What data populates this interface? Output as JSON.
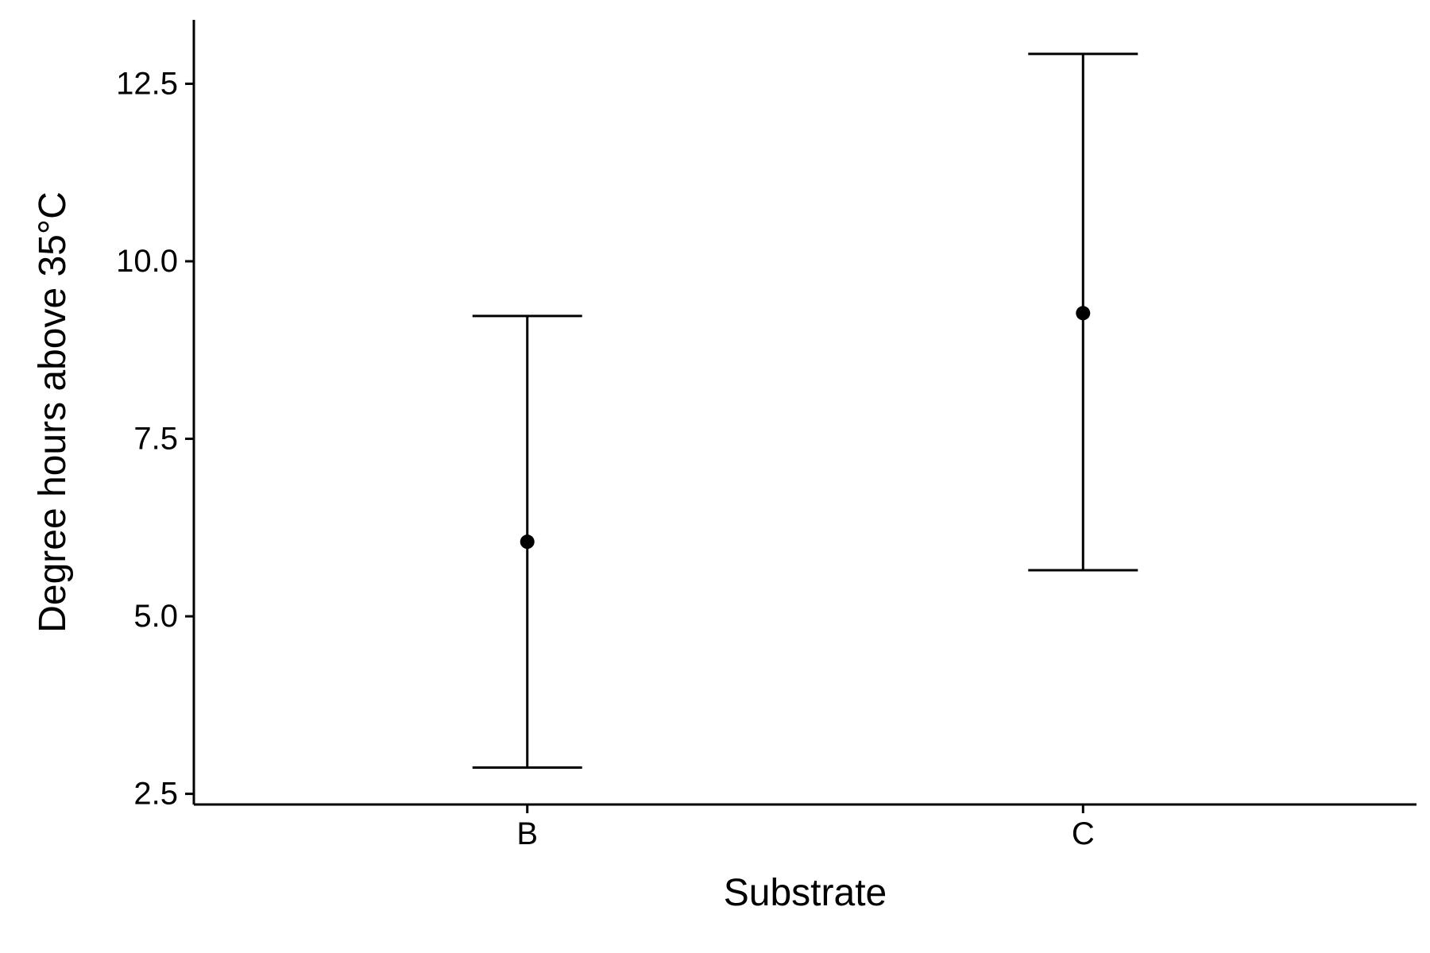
{
  "chart_data": {
    "type": "errorbar",
    "title": "",
    "xlabel": "Substrate",
    "ylabel": "Degree hours above 35°C",
    "categories": [
      "B",
      "C"
    ],
    "series": [
      {
        "values": [
          6.05,
          9.27
        ],
        "lower": [
          2.87,
          5.65
        ],
        "upper": [
          9.23,
          12.92
        ]
      }
    ],
    "ylim": [
      2.35,
      13.4
    ],
    "yticks": [
      2.5,
      5.0,
      7.5,
      10.0,
      12.5
    ],
    "ytick_labels": [
      "2.5",
      "5.0",
      "7.5",
      "10.0",
      "12.5"
    ],
    "grid": false,
    "legend": "none",
    "colors": {
      "axis": "#000000",
      "marks": "#000000",
      "background": "#ffffff"
    }
  }
}
